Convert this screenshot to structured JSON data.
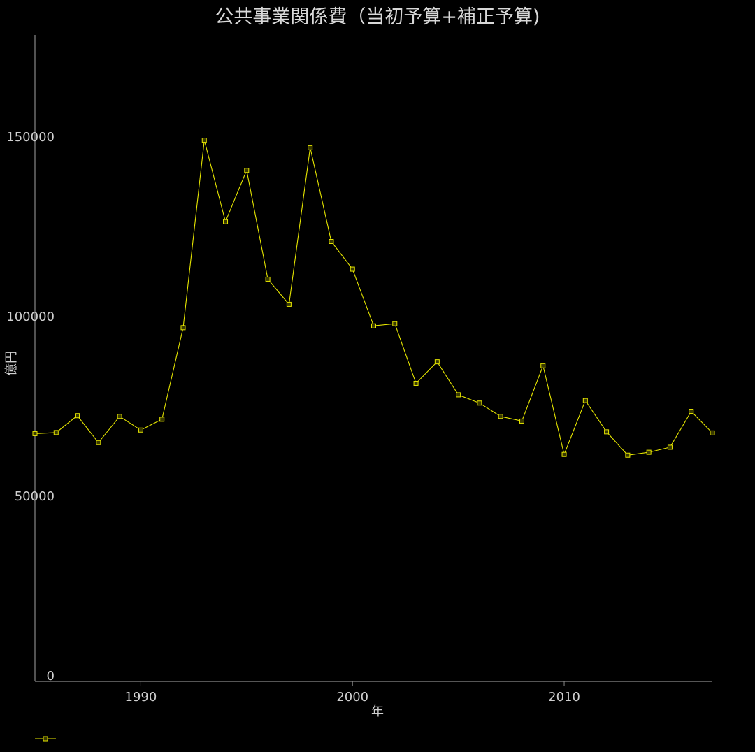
{
  "chart_data": {
    "type": "line",
    "title": "公共事業関係費（当初予算+補正予算)",
    "xlabel": "年",
    "ylabel": "億円",
    "xlim": [
      1985,
      2017
    ],
    "ylim": [
      0,
      180000
    ],
    "x_ticks": [
      "1990",
      "2000",
      "2010"
    ],
    "y_ticks": [
      "0",
      "50000",
      "100000",
      "150000"
    ],
    "grid": false,
    "legend_position": "bottom-left",
    "colors": {
      "background": "#000000",
      "series": "#e6e600",
      "axis": "#888888",
      "text": "#d0d0d0"
    },
    "series": [
      {
        "x": [
          1985,
          1986,
          1987,
          1988,
          1989,
          1990,
          1991,
          1992,
          1993,
          1994,
          1995,
          1996,
          1997,
          1998,
          1999,
          2000,
          2001,
          2002,
          2003,
          2004,
          2005,
          2006,
          2007,
          2008,
          2009,
          2010,
          2011,
          2012,
          2013,
          2014,
          2015,
          2016,
          2017
        ],
        "values": [
          69000,
          69300,
          74000,
          66500,
          73800,
          70000,
          73000,
          98500,
          150700,
          128000,
          142300,
          112000,
          105000,
          148600,
          122500,
          114800,
          99000,
          99600,
          83000,
          89000,
          79800,
          77500,
          73800,
          72500,
          87900,
          63200,
          78200,
          69500,
          63000,
          63800,
          65200,
          75200,
          69200
        ]
      }
    ]
  }
}
